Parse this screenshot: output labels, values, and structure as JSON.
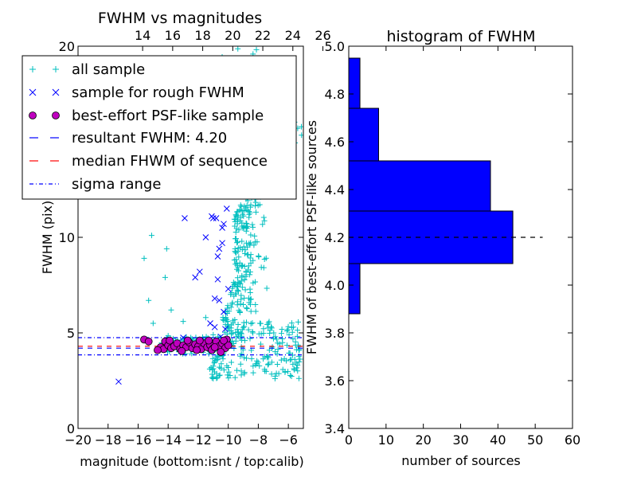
{
  "chart_data": [
    {
      "type": "scatter",
      "title": "FWHM vs magnitudes",
      "xlabel": "magnitude (bottom:isnt / top:calib)",
      "ylabel": "FWHM (pix)",
      "xlim": [
        -20,
        -5
      ],
      "ylim": [
        0,
        20
      ],
      "x_ticks": [
        "−20",
        "−18",
        "−16",
        "−14",
        "−12",
        "−10",
        "−8",
        "−6"
      ],
      "x_tick_values": [
        -20,
        -18,
        -16,
        -14,
        -12,
        -10,
        -8,
        -6
      ],
      "top_ticks": [
        "14",
        "16",
        "18",
        "20",
        "22",
        "24",
        "26"
      ],
      "top_tick_instrumental": [
        -15.7,
        -13.7,
        -11.7,
        -9.7,
        -7.7,
        -5.7,
        -3.7
      ],
      "y_ticks": [
        "0",
        "5",
        "10",
        "20"
      ],
      "y_tick_values": [
        0,
        5,
        10,
        20
      ],
      "legend_position": "top-left",
      "legend": [
        "all sample",
        "sample for rough FWHM",
        "best-effort PSF-like sample",
        "resultant FWHM: 4.20",
        "median FHWM of sequence",
        "sigma range"
      ],
      "colors": {
        "all_sample": "#00bfbf",
        "rough": "#0000ff",
        "psf_fill": "#bf00bf",
        "resultant": "#0000ff",
        "median": "#ff0000",
        "sigma": "#0000ff"
      },
      "resultant_fwhm": 4.2,
      "median_fwhm": 4.3,
      "sigma_range": [
        3.85,
        4.75
      ],
      "series": [
        {
          "name": "sample for rough FWHM",
          "marker": "x",
          "points": [
            [
              -17.3,
              2.45
            ],
            [
              -14.2,
              4.4
            ],
            [
              -13.6,
              4.5
            ],
            [
              -13.0,
              4.75
            ],
            [
              -12.6,
              4.5
            ],
            [
              -12.2,
              7.9
            ],
            [
              -11.9,
              8.2
            ],
            [
              -11.2,
              5.5
            ],
            [
              -10.9,
              6.8
            ],
            [
              -10.7,
              7.8
            ],
            [
              -10.6,
              9.4
            ],
            [
              -10.4,
              9.7
            ],
            [
              -10.6,
              6.7
            ],
            [
              -10.3,
              6.1
            ],
            [
              -10.2,
              5.2
            ],
            [
              -10.1,
              4.6
            ],
            [
              -10.4,
              10.5
            ],
            [
              -11.1,
              11.1
            ],
            [
              -11.0,
              11.0
            ],
            [
              -10.8,
              11.0
            ],
            [
              -10.3,
              10.7
            ],
            [
              -10.1,
              11.5
            ],
            [
              -12.9,
              11.0
            ],
            [
              -13.2,
              12.3
            ],
            [
              -11.8,
              12.6
            ],
            [
              -11.5,
              10.0
            ],
            [
              -10.9,
              5.3
            ],
            [
              -10.5,
              4.8
            ],
            [
              -10.0,
              7.3
            ],
            [
              -10.7,
              9.0
            ]
          ]
        },
        {
          "name": "best-effort PSF-like sample",
          "marker": "o",
          "points": [
            [
              -15.6,
              4.65
            ],
            [
              -15.3,
              4.55
            ],
            [
              -14.5,
              4.25
            ],
            [
              -14.3,
              4.15
            ],
            [
              -14.2,
              4.55
            ],
            [
              -14.0,
              4.35
            ],
            [
              -13.8,
              4.2
            ],
            [
              -13.6,
              4.3
            ],
            [
              -13.4,
              4.45
            ],
            [
              -13.2,
              4.15
            ],
            [
              -13.0,
              4.35
            ],
            [
              -12.8,
              4.25
            ],
            [
              -12.6,
              4.5
            ],
            [
              -12.4,
              4.2
            ],
            [
              -12.2,
              4.4
            ],
            [
              -12.0,
              4.3
            ],
            [
              -11.8,
              4.15
            ],
            [
              -11.6,
              4.45
            ],
            [
              -11.4,
              4.25
            ],
            [
              -11.2,
              4.35
            ],
            [
              -11.0,
              4.2
            ],
            [
              -10.8,
              4.55
            ],
            [
              -10.6,
              4.3
            ],
            [
              -10.4,
              4.45
            ],
            [
              -10.2,
              4.2
            ],
            [
              -10.1,
              4.65
            ],
            [
              -10.0,
              4.35
            ],
            [
              -14.7,
              4.1
            ],
            [
              -13.1,
              4.05
            ],
            [
              -11.9,
              4.6
            ],
            [
              -11.1,
              4.1
            ],
            [
              -10.5,
              4.0
            ],
            [
              -12.7,
              4.6
            ],
            [
              -13.9,
              4.6
            ],
            [
              -10.3,
              4.6
            ],
            [
              -10.9,
              4.25
            ],
            [
              -12.1,
              4.1
            ],
            [
              -11.3,
              4.6
            ]
          ]
        }
      ]
    },
    {
      "type": "bar",
      "orientation": "horizontal",
      "title": "histogram of FWHM",
      "xlabel": "number of sources",
      "ylabel": "FWHM of best-effort PSF-like sources",
      "xlim": [
        0,
        60
      ],
      "ylim": [
        3.4,
        5.0
      ],
      "x_ticks": [
        "0",
        "10",
        "20",
        "30",
        "40",
        "50",
        "60"
      ],
      "x_tick_values": [
        0,
        10,
        20,
        30,
        40,
        50,
        60
      ],
      "y_ticks": [
        "3.4",
        "3.6",
        "3.8",
        "4.0",
        "4.2",
        "4.4",
        "4.6",
        "4.8",
        "5.0"
      ],
      "y_tick_values": [
        3.4,
        3.6,
        3.8,
        4.0,
        4.2,
        4.4,
        4.6,
        4.8,
        5.0
      ],
      "bar_color": "#0000ff",
      "bins": [
        {
          "low": 3.88,
          "high": 4.09,
          "count": 3
        },
        {
          "low": 4.09,
          "high": 4.31,
          "count": 44
        },
        {
          "low": 4.31,
          "high": 4.52,
          "count": 38
        },
        {
          "low": 4.52,
          "high": 4.74,
          "count": 8
        },
        {
          "low": 4.74,
          "high": 4.95,
          "count": 3
        }
      ],
      "reference_line": {
        "value": 4.2,
        "xmax": 52
      }
    }
  ]
}
